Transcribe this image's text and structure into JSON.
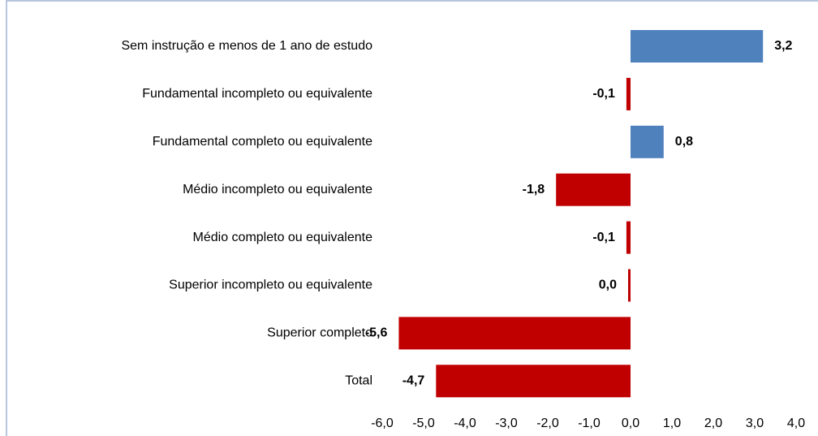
{
  "chart_data": {
    "type": "hbar",
    "categories": [
      "Sem instrução e menos de 1 ano de estudo",
      "Fundamental incompleto ou equivalente",
      "Fundamental completo ou equivalente",
      "Médio incompleto ou equivalente",
      "Médio completo ou equivalente",
      "Superior incompleto ou equivalente",
      "Superior completo",
      "Total"
    ],
    "values": [
      3.2,
      -0.1,
      0.8,
      -1.8,
      -0.1,
      0.0,
      -5.6,
      -4.7
    ],
    "value_labels": [
      "3,2",
      "-0,1",
      "0,8",
      "-1,8",
      "-0,1",
      "0,0",
      "-5,6",
      "-4,7"
    ],
    "colors": [
      "#4f81bd",
      "#c00000",
      "#4f81bd",
      "#c00000",
      "#c00000",
      "#c00000",
      "#c00000",
      "#c00000"
    ],
    "xlim": [
      -6,
      4
    ],
    "xticks": [
      {
        "value": -6,
        "label": "-6,0"
      },
      {
        "value": -5,
        "label": "-5,0"
      },
      {
        "value": -4,
        "label": "-4,0"
      },
      {
        "value": -3,
        "label": "-3,0"
      },
      {
        "value": -2,
        "label": "-2,0"
      },
      {
        "value": -1,
        "label": "-1,0"
      },
      {
        "value": 0,
        "label": "0,0"
      },
      {
        "value": 1,
        "label": "1,0"
      },
      {
        "value": 2,
        "label": "2,0"
      },
      {
        "value": 3,
        "label": "3,0"
      },
      {
        "value": 4,
        "label": "4,0"
      }
    ],
    "grid": false
  }
}
